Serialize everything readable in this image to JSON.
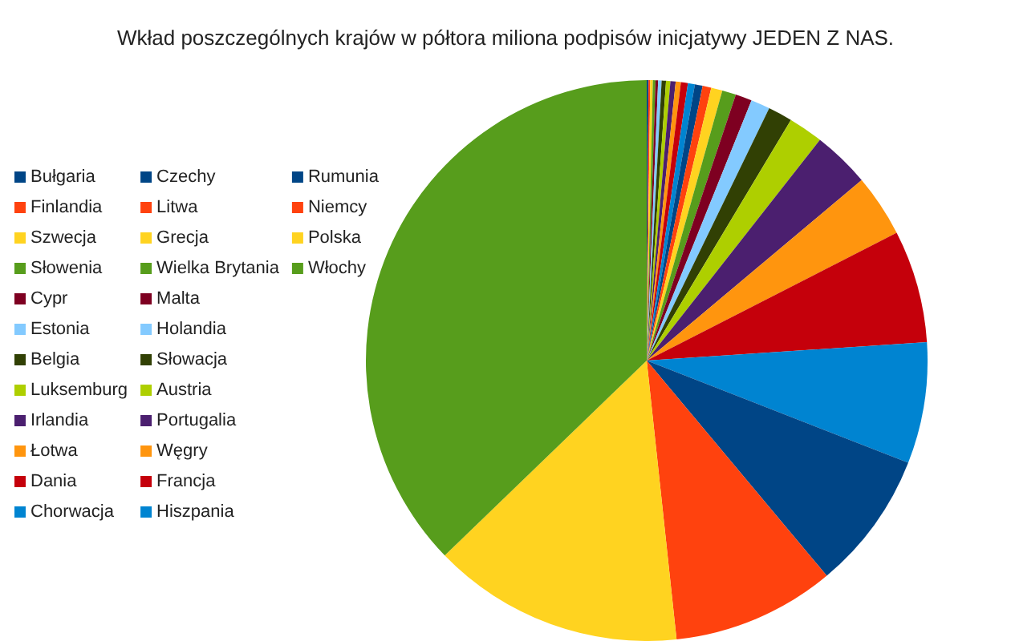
{
  "chart_data": {
    "type": "pie",
    "title": "Wkład poszczególnych krajów w półtora miliona podpisów inicjatywy JEDEN Z NAS.",
    "categories": [
      "Bułgaria",
      "Finlandia",
      "Szwecja",
      "Słowenia",
      "Cypr",
      "Estonia",
      "Belgia",
      "Luksemburg",
      "Irlandia",
      "Łotwa",
      "Dania",
      "Chorwacja",
      "Czechy",
      "Litwa",
      "Grecja",
      "Wielka Brytania",
      "Malta",
      "Holandia",
      "Słowacja",
      "Austria",
      "Portugalia",
      "Węgry",
      "Francja",
      "Hiszpania",
      "Rumunia",
      "Niemcy",
      "Polska",
      "Włochy"
    ],
    "values": [
      0.1,
      0.1,
      0.15,
      0.15,
      0.15,
      0.2,
      0.25,
      0.25,
      0.3,
      0.3,
      0.4,
      0.4,
      0.45,
      0.5,
      0.65,
      0.8,
      0.95,
      1.1,
      1.4,
      2,
      3.3,
      3.6,
      6.5,
      7,
      8,
      9.4,
      14.5,
      37.3
    ],
    "colors": [
      "#004586",
      "#ff420e",
      "#ffd320",
      "#579d1c",
      "#7e0021",
      "#83caff",
      "#314004",
      "#aecf00",
      "#4b1f6f",
      "#ff950e",
      "#c5000b",
      "#0084d1",
      "#004586",
      "#ff420e",
      "#ffd320",
      "#579d1c",
      "#7e0021",
      "#83caff",
      "#314004",
      "#aecf00",
      "#4b1f6f",
      "#ff950e",
      "#c5000b",
      "#0084d1",
      "#004586",
      "#ff420e",
      "#ffd320",
      "#579d1c"
    ],
    "legend": "left"
  }
}
